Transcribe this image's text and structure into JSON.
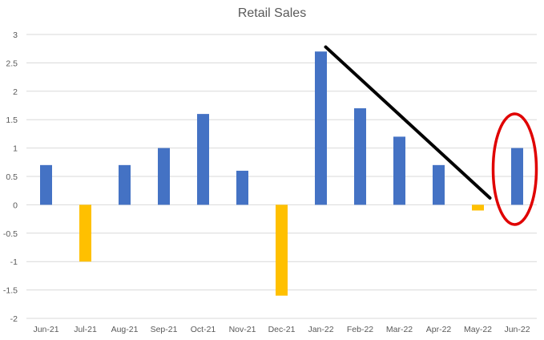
{
  "chart_data": {
    "type": "bar",
    "title": "Retail Sales",
    "xlabel": "",
    "ylabel": "",
    "categories": [
      "Jun-21",
      "Jul-21",
      "Aug-21",
      "Sep-21",
      "Oct-21",
      "Nov-21",
      "Dec-21",
      "Jan-22",
      "Feb-22",
      "Mar-22",
      "Apr-22",
      "May-22",
      "Jun-22"
    ],
    "values": [
      0.7,
      -1.0,
      0.7,
      1.0,
      1.6,
      0.6,
      -1.6,
      2.7,
      1.7,
      1.2,
      0.7,
      -0.1,
      1.0
    ],
    "ylim": [
      -2,
      3
    ],
    "yticks": [
      "3",
      "2.5",
      "2",
      "1.5",
      "1",
      "0.5",
      "0",
      "-0.5",
      "-1",
      "-1.5",
      "-2"
    ],
    "grid": true,
    "legend": "none",
    "colors": {
      "positive": "#4472C4",
      "negative": "#FFC000",
      "gridline": "#D9D9D9",
      "axis_text": "#595959"
    },
    "annotations": [
      {
        "type": "trend-line",
        "color": "#000000",
        "from": {
          "x": "Jan-22",
          "y": 2.78
        },
        "to": {
          "x": "May-22",
          "y": 0.12
        }
      },
      {
        "type": "ellipse",
        "color": "#E00000",
        "around": "Jun-22"
      }
    ]
  }
}
